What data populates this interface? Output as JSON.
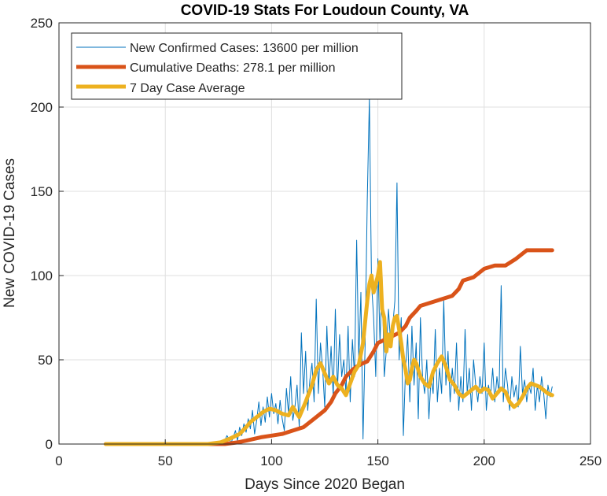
{
  "chart_data": {
    "type": "line",
    "title": "COVID-19 Stats For Loudoun County, VA",
    "xlabel": "Days Since 2020 Began",
    "ylabel": "New COVID-19 Cases",
    "xlim": [
      0,
      250
    ],
    "ylim": [
      0,
      250
    ],
    "xticks": [
      0,
      50,
      100,
      150,
      200,
      250
    ],
    "yticks": [
      0,
      50,
      100,
      150,
      200,
      250
    ],
    "grid": true,
    "legend_position": "top-left",
    "series": [
      {
        "name": "New Confirmed Cases: 13600 per million",
        "color": "#0072bd",
        "style": "thin",
        "x": [
          22,
          40,
          60,
          72,
          74,
          76,
          78,
          79,
          80,
          81,
          82,
          83,
          84,
          85,
          86,
          87,
          88,
          89,
          90,
          91,
          92,
          93,
          94,
          95,
          96,
          97,
          98,
          99,
          100,
          101,
          102,
          103,
          104,
          105,
          106,
          107,
          108,
          109,
          110,
          111,
          112,
          113,
          114,
          115,
          116,
          117,
          118,
          119,
          120,
          121,
          122,
          123,
          124,
          125,
          126,
          127,
          128,
          129,
          130,
          131,
          132,
          133,
          134,
          135,
          136,
          137,
          138,
          139,
          140,
          141,
          142,
          143,
          144,
          145,
          146,
          147,
          148,
          149,
          150,
          151,
          152,
          153,
          154,
          155,
          156,
          157,
          158,
          159,
          160,
          161,
          162,
          163,
          164,
          165,
          166,
          167,
          168,
          169,
          170,
          171,
          172,
          173,
          174,
          175,
          176,
          177,
          178,
          179,
          180,
          181,
          182,
          183,
          184,
          185,
          186,
          187,
          188,
          189,
          190,
          191,
          192,
          193,
          194,
          195,
          196,
          197,
          198,
          199,
          200,
          201,
          202,
          203,
          204,
          205,
          206,
          207,
          208,
          209,
          210,
          211,
          212,
          213,
          214,
          215,
          216,
          217,
          218,
          219,
          220,
          221,
          222,
          223,
          224,
          225,
          226,
          227,
          228,
          229,
          230,
          231,
          232
        ],
        "y": [
          0,
          0,
          0,
          0,
          1,
          0,
          2,
          5,
          3,
          1,
          4,
          8,
          2,
          10,
          5,
          12,
          7,
          15,
          9,
          20,
          6,
          14,
          25,
          11,
          22,
          13,
          28,
          16,
          30,
          18,
          24,
          12,
          26,
          15,
          8,
          33,
          18,
          40,
          14,
          22,
          35,
          10,
          66,
          30,
          55,
          20,
          38,
          48,
          25,
          86,
          30,
          60,
          45,
          22,
          70,
          35,
          58,
          28,
          80,
          32,
          65,
          40,
          50,
          30,
          70,
          25,
          62,
          40,
          121,
          50,
          90,
          3,
          60,
          145,
          205,
          95,
          75,
          40,
          110,
          60,
          100,
          40,
          56,
          80,
          60,
          70,
          85,
          155,
          50,
          75,
          5,
          45,
          65,
          25,
          70,
          35,
          60,
          15,
          75,
          40,
          30,
          50,
          15,
          40,
          30,
          68,
          25,
          45,
          30,
          85,
          35,
          55,
          25,
          45,
          30,
          60,
          20,
          40,
          25,
          68,
          30,
          45,
          20,
          50,
          35,
          25,
          40,
          30,
          60,
          20,
          35,
          28,
          45,
          25,
          40,
          30,
          94,
          25,
          45,
          35,
          20,
          40,
          28,
          35,
          22,
          58,
          30,
          38,
          25,
          35,
          30,
          45,
          20,
          35,
          25,
          40,
          30,
          15,
          35,
          28,
          34
        ]
      },
      {
        "name": "Cumulative Deaths: 278.1 per million",
        "color": "#d95319",
        "style": "thick",
        "x": [
          22,
          78,
          84,
          88,
          95,
          100,
          105,
          110,
          115,
          118,
          120,
          123,
          125,
          128,
          130,
          133,
          135,
          138,
          140,
          143,
          145,
          148,
          150,
          155,
          160,
          163,
          165,
          168,
          170,
          175,
          180,
          185,
          188,
          190,
          195,
          198,
          200,
          205,
          210,
          215,
          218,
          220,
          225,
          230,
          232
        ],
        "y": [
          0,
          0,
          1,
          2,
          4,
          5,
          6,
          8,
          10,
          13,
          15,
          18,
          20,
          25,
          30,
          35,
          40,
          44,
          46,
          48,
          49,
          55,
          60,
          63,
          66,
          70,
          75,
          79,
          82,
          84,
          86,
          88,
          92,
          97,
          99,
          102,
          104,
          106,
          106,
          110,
          113,
          115,
          115,
          115,
          115
        ]
      },
      {
        "name": "7 Day Case Average",
        "color": "#edb120",
        "style": "thick",
        "x": [
          22,
          70,
          76,
          80,
          85,
          88,
          90,
          93,
          96,
          99,
          102,
          105,
          108,
          110,
          113,
          116,
          119,
          121,
          123,
          125,
          127,
          129,
          131,
          133,
          135,
          137,
          139,
          141,
          143,
          145,
          146,
          147,
          148,
          149,
          150,
          151,
          152,
          153,
          154,
          155,
          156,
          157,
          158,
          159,
          160,
          161,
          162,
          163,
          164,
          165,
          166,
          167,
          168,
          170,
          172,
          174,
          176,
          178,
          180,
          182,
          184,
          186,
          188,
          190,
          192,
          194,
          196,
          198,
          200,
          202,
          204,
          206,
          208,
          210,
          212,
          214,
          216,
          218,
          220,
          222,
          224,
          226,
          228,
          230,
          232
        ],
        "y": [
          0,
          0,
          1,
          3,
          6,
          10,
          13,
          16,
          19,
          21,
          20,
          18,
          17,
          22,
          16,
          25,
          35,
          44,
          48,
          42,
          36,
          40,
          35,
          33,
          29,
          36,
          43,
          47,
          60,
          85,
          95,
          100,
          90,
          95,
          100,
          108,
          80,
          75,
          55,
          65,
          58,
          70,
          75,
          76,
          68,
          60,
          50,
          44,
          36,
          38,
          45,
          50,
          48,
          40,
          36,
          34,
          43,
          48,
          52,
          46,
          38,
          35,
          30,
          28,
          30,
          32,
          34,
          31,
          33,
          32,
          27,
          30,
          33,
          31,
          25,
          22,
          24,
          28,
          33,
          36,
          35,
          34,
          32,
          30,
          29
        ]
      }
    ]
  }
}
